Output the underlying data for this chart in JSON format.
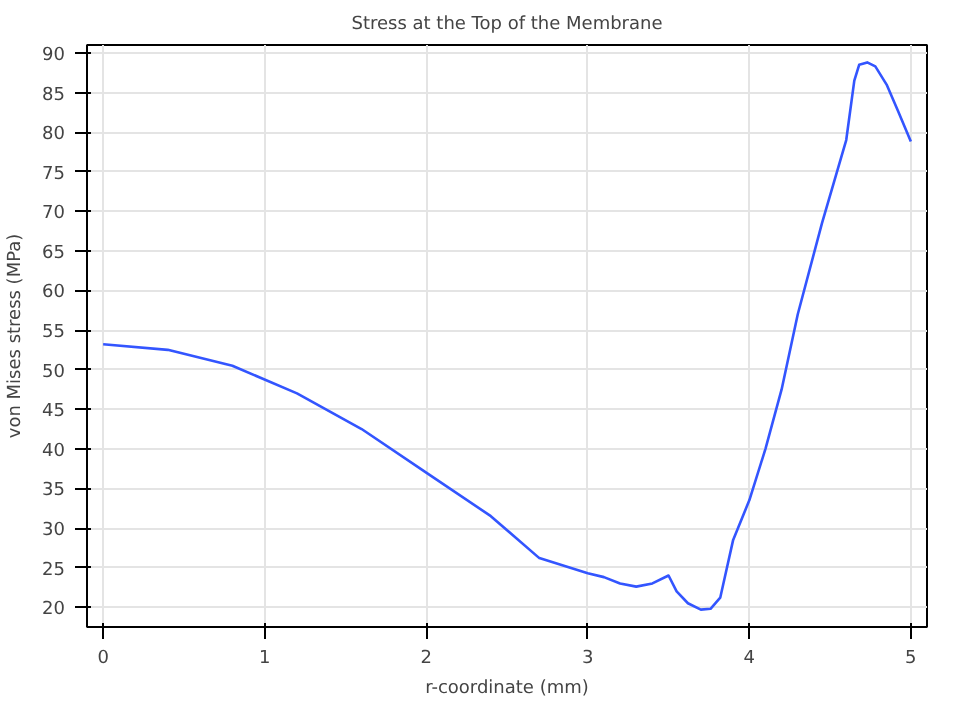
{
  "chart_data": {
    "type": "line",
    "title": "Stress at the Top of the Membrane",
    "xlabel": "r-coordinate (mm)",
    "ylabel": "von Mises stress (MPa)",
    "x": [
      0,
      0.4,
      0.8,
      1.2,
      1.6,
      2.0,
      2.4,
      2.7,
      3.0,
      3.1,
      3.2,
      3.3,
      3.4,
      3.5,
      3.55,
      3.62,
      3.7,
      3.76,
      3.82,
      3.9,
      4.0,
      4.1,
      4.2,
      4.3,
      4.45,
      4.6,
      4.65,
      4.68,
      4.73,
      4.78,
      4.85,
      4.92,
      5.0
    ],
    "series": [
      {
        "color": "#3355ff",
        "values": [
          53.2,
          52.5,
          50.5,
          47,
          42.5,
          37,
          31.5,
          26.2,
          24.3,
          23.8,
          23,
          22.6,
          23,
          24,
          22,
          20.5,
          19.7,
          19.8,
          21.2,
          28.5,
          33.5,
          40,
          47.5,
          57,
          68.5,
          79,
          86.5,
          88.5,
          88.8,
          88.3,
          86,
          82.7,
          78.8
        ]
      }
    ],
    "xlim": [
      -0.1,
      5.1
    ],
    "ylim": [
      17.5,
      91
    ],
    "xticks": [
      0,
      1,
      2,
      3,
      4,
      5
    ],
    "yticks": [
      20,
      25,
      30,
      35,
      40,
      45,
      50,
      55,
      60,
      65,
      70,
      75,
      80,
      85,
      90
    ],
    "grid": true,
    "marker": "none",
    "line_style": "solid"
  }
}
